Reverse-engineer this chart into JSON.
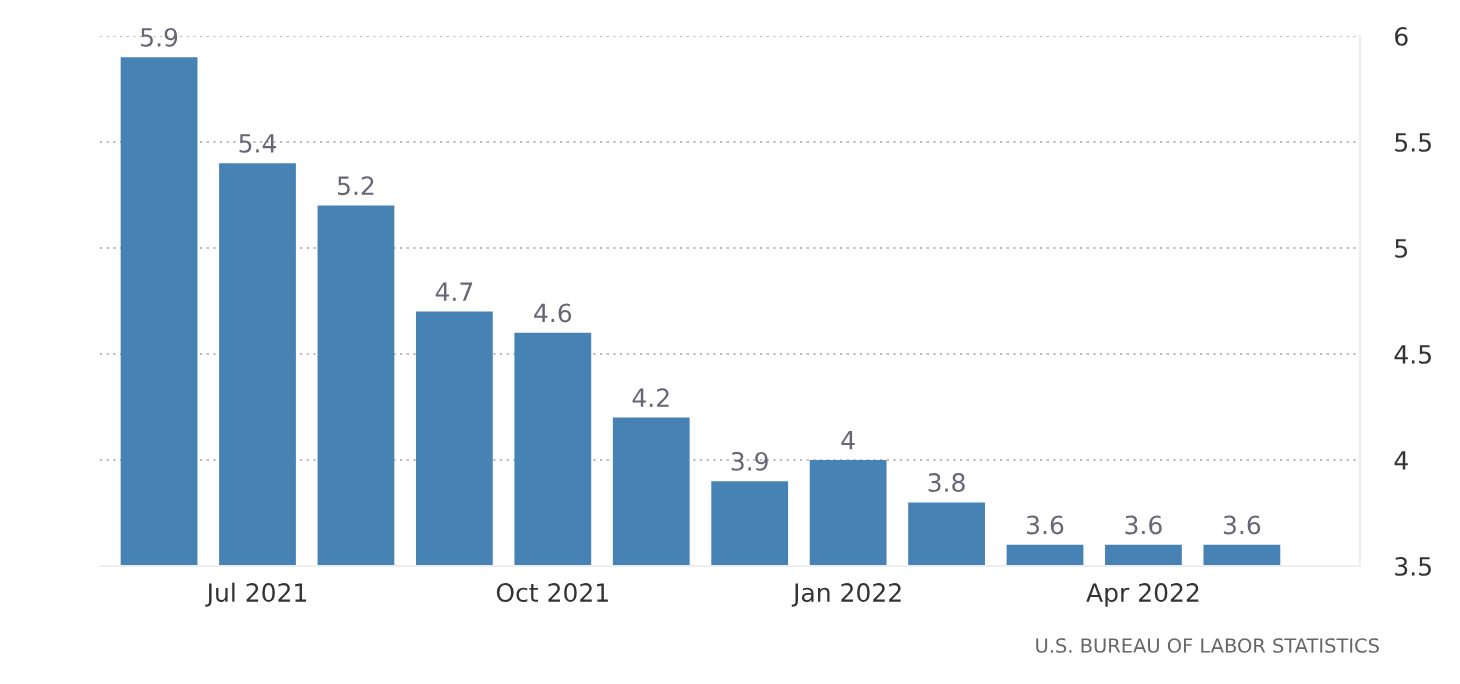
{
  "chart_data": {
    "type": "bar",
    "categories": [
      null,
      "Jul 2021",
      null,
      null,
      "Oct 2021",
      null,
      null,
      "Jan 2022",
      null,
      null,
      "Apr 2022",
      null
    ],
    "values": [
      5.9,
      5.4,
      5.2,
      4.7,
      4.6,
      4.2,
      3.9,
      4,
      3.8,
      3.6,
      3.6,
      3.6
    ],
    "color": "#4682b4",
    "ylim": [
      3.5,
      6
    ],
    "yticks": [
      3.5,
      4,
      4.5,
      5,
      5.5,
      6
    ],
    "grid": "y",
    "data_labels": true,
    "annotations": [
      "U.S. BUREAU OF LABOR STATISTICS"
    ]
  }
}
